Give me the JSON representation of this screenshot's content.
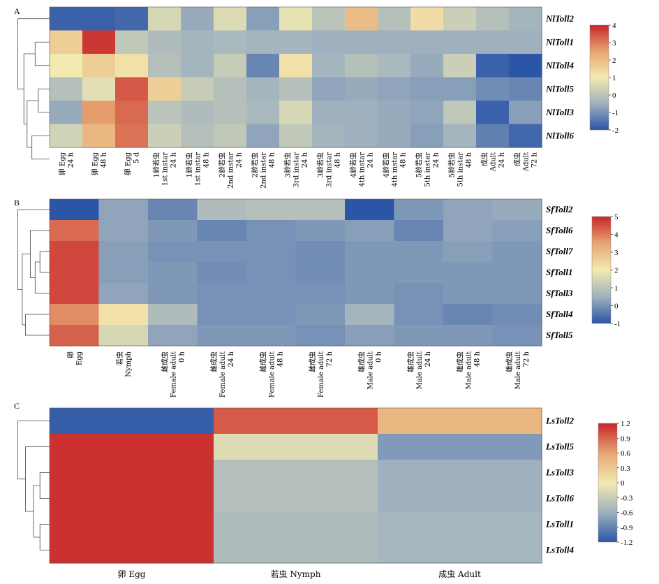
{
  "chart_data": [
    {
      "type": "heatmap",
      "panel_label": "A",
      "rows": [
        "NlToll2",
        "NlToll1",
        "NlToll4",
        "NlToll5",
        "NlToll3",
        "NlToll6"
      ],
      "columns": [
        [
          "卵 Egg",
          "24 h"
        ],
        [
          "卵 Egg",
          "48 h"
        ],
        [
          "卵 Egg",
          "5 d"
        ],
        [
          "1龄若虫",
          "1st instar",
          "24 h"
        ],
        [
          "1龄若虫",
          "1st instar",
          "48 h"
        ],
        [
          "2龄若虫",
          "2nd instar",
          "24 h"
        ],
        [
          "2龄若虫",
          "2nd instar",
          "48 h"
        ],
        [
          "3龄若虫",
          "3rd instar",
          "24 h"
        ],
        [
          "3龄若虫",
          "3rd instar",
          "48 h"
        ],
        [
          "4龄若虫",
          "4th instar",
          "24 h"
        ],
        [
          "4龄若虫",
          "4th instar",
          "48 h"
        ],
        [
          "5龄若虫",
          "5th instar",
          "24 h"
        ],
        [
          "5龄若虫",
          "5th instar",
          "48 h"
        ],
        [
          "成虫",
          "Adult",
          "24 h"
        ],
        [
          "成虫",
          "Adult",
          "72 h"
        ]
      ],
      "values": [
        [
          -1.8,
          -1.8,
          -1.7,
          0.5,
          -0.6,
          0.6,
          -0.8,
          0.8,
          0.0,
          2.0,
          -0.1,
          1.3,
          0.3,
          -0.1,
          -0.4
        ],
        [
          1.6,
          3.8,
          0.1,
          -0.2,
          -0.4,
          -0.3,
          -0.4,
          -0.4,
          -0.5,
          -0.5,
          -0.5,
          -0.5,
          -0.5,
          -0.5,
          -0.5
        ],
        [
          1.0,
          1.6,
          1.2,
          -0.1,
          -0.4,
          0.2,
          -1.2,
          1.2,
          -0.4,
          -0.1,
          -0.3,
          -0.6,
          0.3,
          -1.8,
          -2.0
        ],
        [
          -0.1,
          0.7,
          3.4,
          1.6,
          0.2,
          -0.1,
          -0.4,
          -0.1,
          -0.7,
          -0.6,
          -0.7,
          -0.8,
          -0.8,
          -1.1,
          -1.2
        ],
        [
          -0.6,
          2.6,
          3.2,
          0.0,
          -0.2,
          -0.1,
          -0.3,
          0.5,
          -0.5,
          -0.5,
          -0.6,
          -0.7,
          0.1,
          -1.8,
          -0.8
        ],
        [
          0.4,
          2.1,
          3.1,
          0.3,
          -0.1,
          0.1,
          -0.7,
          0.1,
          -0.4,
          -0.5,
          -0.6,
          -0.8,
          -0.4,
          -1.3,
          -1.7
        ]
      ],
      "colorbar": {
        "min": -2,
        "max": 4,
        "ticks": [
          "4",
          "3",
          "2",
          "1",
          "0",
          "-1",
          "-2"
        ]
      },
      "dendrogram_side": "left"
    },
    {
      "type": "heatmap",
      "panel_label": "B",
      "rows": [
        "SfToll2",
        "SfToll6",
        "SfToll7",
        "SfToll1",
        "SfToll3",
        "SfToll4",
        "SfToll5"
      ],
      "columns": [
        [
          "卵",
          "Egg"
        ],
        [
          "若虫",
          "Nymph"
        ],
        [
          "雌成虫",
          "Female adult",
          "0 h"
        ],
        [
          "雌成虫",
          "Female adult",
          "24 h"
        ],
        [
          "雌成虫",
          "Female adult",
          "48 h"
        ],
        [
          "雌成虫",
          "Female adult",
          "72 h"
        ],
        [
          "雄成虫",
          "Male adult",
          "0 h"
        ],
        [
          "雄成虫",
          "Male adult",
          "24 h"
        ],
        [
          "雄成虫",
          "Male adult",
          "48 h"
        ],
        [
          "雄成虫",
          "Male adult",
          "72 h"
        ]
      ],
      "values": [
        [
          -1.0,
          0.3,
          -0.2,
          0.8,
          0.9,
          0.9,
          -1.0,
          0.1,
          0.3,
          0.4
        ],
        [
          4.2,
          0.3,
          0.1,
          -0.2,
          0.0,
          0.1,
          0.2,
          -0.2,
          0.3,
          0.2
        ],
        [
          4.6,
          0.2,
          0.0,
          0.0,
          0.0,
          -0.1,
          0.1,
          0.1,
          0.2,
          0.1
        ],
        [
          4.6,
          0.2,
          0.1,
          -0.1,
          0.0,
          -0.1,
          0.1,
          0.1,
          0.1,
          0.1
        ],
        [
          4.6,
          0.3,
          0.1,
          0.0,
          0.0,
          0.0,
          0.1,
          0.0,
          0.1,
          0.1
        ],
        [
          3.8,
          2.2,
          0.8,
          0.0,
          0.0,
          0.1,
          0.6,
          0.0,
          -0.2,
          -0.1
        ],
        [
          4.3,
          1.5,
          0.3,
          0.1,
          0.1,
          0.0,
          0.2,
          0.1,
          0.1,
          0.0
        ]
      ],
      "colorbar": {
        "min": -1,
        "max": 5,
        "ticks": [
          "5",
          "4",
          "3",
          "2",
          "1",
          "0",
          "-1"
        ]
      },
      "dendrogram_side": "left"
    },
    {
      "type": "heatmap",
      "panel_label": "C",
      "rows": [
        "LsToll2",
        "LsToll5",
        "LsToll3",
        "LsToll6",
        "LsToll1",
        "LsToll4"
      ],
      "columns": [
        [
          "卵 Egg"
        ],
        [
          "若虫 Nymph"
        ],
        [
          "成虫 Adult"
        ]
      ],
      "values": [
        [
          -1.15,
          0.95,
          0.45
        ],
        [
          1.15,
          -0.15,
          -0.75
        ],
        [
          1.15,
          -0.45,
          -0.6
        ],
        [
          1.15,
          -0.45,
          -0.6
        ],
        [
          1.15,
          -0.5,
          -0.55
        ],
        [
          1.15,
          -0.5,
          -0.55
        ]
      ],
      "colorbar": {
        "min": -1.2,
        "max": 1.2,
        "ticks": [
          "1.2",
          "0.9",
          "0.6",
          "0.3",
          "0",
          "-0.3",
          "-0.6",
          "-0.9",
          "-1.2"
        ]
      },
      "dendrogram_side": "left"
    }
  ],
  "colormap": [
    "#2b55a6",
    "#9fb1bf",
    "#f2eab0",
    "#e7a572",
    "#c8262a"
  ]
}
